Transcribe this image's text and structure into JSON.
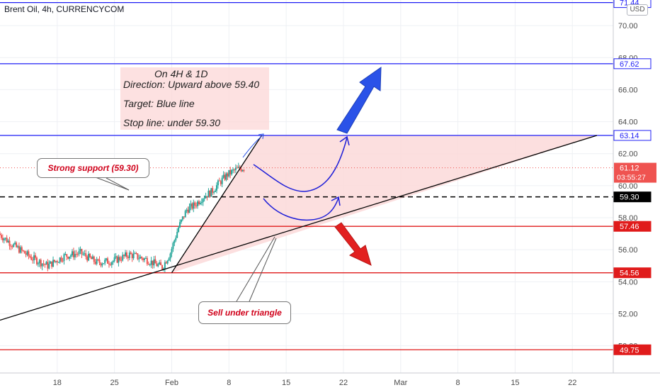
{
  "header": {
    "symbol_title": "Brent Oil, 4h, CURRENCYCOM",
    "currency_label": "USD"
  },
  "colors": {
    "blue_level": "#1f1ff5",
    "red_level": "#e01b1b",
    "triangle_fill": "#fcd9d9",
    "candle_up": "#26a69a",
    "candle_down": "#ef5350",
    "arrow_blue": "#2a52e8",
    "arrow_red": "#e22020"
  },
  "annotations": {
    "note_line1": "On 4H & 1D",
    "note_line2": "Direction: Upward above 59.40",
    "note_line3": "Target: Blue line",
    "note_line4": "Stop line: under 59.30",
    "support_label": "Strong support (59.30)",
    "sell_label": "Sell under triangle"
  },
  "price_axis": {
    "ticks": [
      "70.00",
      "68.00",
      "66.00",
      "64.00",
      "62.00",
      "60.00",
      "58.00",
      "56.00",
      "54.00",
      "52.00",
      "50.00"
    ],
    "current_price": "61.12",
    "countdown": "03:55:27"
  },
  "time_axis": {
    "ticks": [
      "18",
      "25",
      "Feb",
      "8",
      "15",
      "22",
      "Mar",
      "8",
      "15",
      "22"
    ]
  },
  "chart_data": {
    "type": "candlestick",
    "title": "Brent Oil, 4h, CURRENCYCOM",
    "ylim": [
      48.3,
      71.6
    ],
    "xlim": [
      "2021-01-11",
      "2021-03-27"
    ],
    "x_ticks": [
      "2021-01-18",
      "2021-01-25",
      "2021-02-01",
      "2021-02-08",
      "2021-02-15",
      "2021-02-22",
      "2021-03-01",
      "2021-03-08",
      "2021-03-15",
      "2021-03-22"
    ],
    "grid": true,
    "price_series_daily_close": [
      {
        "x": "2021-01-11",
        "close": 57.0
      },
      {
        "x": "2021-01-13",
        "close": 56.2
      },
      {
        "x": "2021-01-15",
        "close": 55.5
      },
      {
        "x": "2021-01-17",
        "close": 55.0
      },
      {
        "x": "2021-01-19",
        "close": 55.6
      },
      {
        "x": "2021-01-21",
        "close": 55.8
      },
      {
        "x": "2021-01-23",
        "close": 55.2
      },
      {
        "x": "2021-01-25",
        "close": 55.3
      },
      {
        "x": "2021-01-27",
        "close": 55.7
      },
      {
        "x": "2021-01-29",
        "close": 55.4
      },
      {
        "x": "2021-01-31",
        "close": 54.9
      },
      {
        "x": "2021-02-01",
        "close": 55.8
      },
      {
        "x": "2021-02-02",
        "close": 57.4
      },
      {
        "x": "2021-02-03",
        "close": 58.5
      },
      {
        "x": "2021-02-04",
        "close": 58.8
      },
      {
        "x": "2021-02-05",
        "close": 59.3
      },
      {
        "x": "2021-02-06",
        "close": 59.6
      },
      {
        "x": "2021-02-07",
        "close": 60.2
      },
      {
        "x": "2021-02-08",
        "close": 60.7
      },
      {
        "x": "2021-02-09",
        "close": 61.0
      },
      {
        "x": "2021-02-10",
        "close": 61.12
      }
    ],
    "horizontal_levels": [
      {
        "label": "71.44",
        "value": 71.44,
        "color": "blue"
      },
      {
        "label": "67.62",
        "value": 67.62,
        "color": "blue"
      },
      {
        "label": "63.14",
        "value": 63.14,
        "color": "blue"
      },
      {
        "label": "59.30",
        "value": 59.3,
        "color": "black",
        "style": "dashed"
      },
      {
        "label": "57.46",
        "value": 57.46,
        "color": "red"
      },
      {
        "label": "54.56",
        "value": 54.56,
        "color": "red"
      },
      {
        "label": "49.75",
        "value": 49.75,
        "color": "red"
      }
    ],
    "trendlines": [
      {
        "from": {
          "x": "2021-01-11",
          "y": 51.6
        },
        "to": {
          "x": "2021-03-25",
          "y": 63.14
        }
      },
      {
        "from": {
          "x": "2021-02-01",
          "y": 54.56
        },
        "to": {
          "x": "2021-02-12",
          "y": 63.14
        }
      }
    ],
    "triangle": [
      {
        "x": "2021-02-01",
        "y": 54.56
      },
      {
        "x": "2021-02-12",
        "y": 63.14
      },
      {
        "x": "2021-03-25",
        "y": 63.14
      }
    ]
  }
}
